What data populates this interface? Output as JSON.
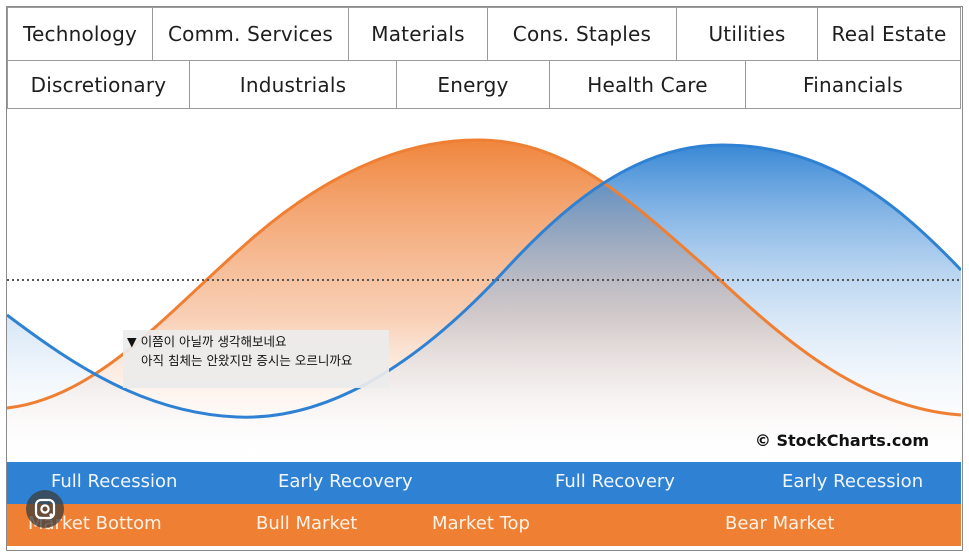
{
  "sectors_row1": [
    "Technology",
    "Comm. Services",
    "Materials",
    "Cons. Staples",
    "Utilities",
    "Real Estate"
  ],
  "sectors_row2": [
    "Discretionary",
    "Industrials",
    "Energy",
    "Health Care",
    "Financials"
  ],
  "credit": "© StockCharts.com",
  "note": {
    "line1": "▼ 이쯤이 아닐까 생각해보네요",
    "line2": "아직 침체는 안왔지만 증시는 오르니까요"
  },
  "economy_cycle": [
    "Full Recession",
    "Early Recovery",
    "Full Recovery",
    "Early Recession"
  ],
  "market_cycle": [
    "Market Bottom",
    "Bull Market",
    "Market Top",
    "Bear Market"
  ],
  "colors": {
    "market": "#ef7f33",
    "economy": "#2f82d3",
    "baseline": "#555555"
  },
  "icons": {
    "lens": "google-lens-icon"
  }
}
